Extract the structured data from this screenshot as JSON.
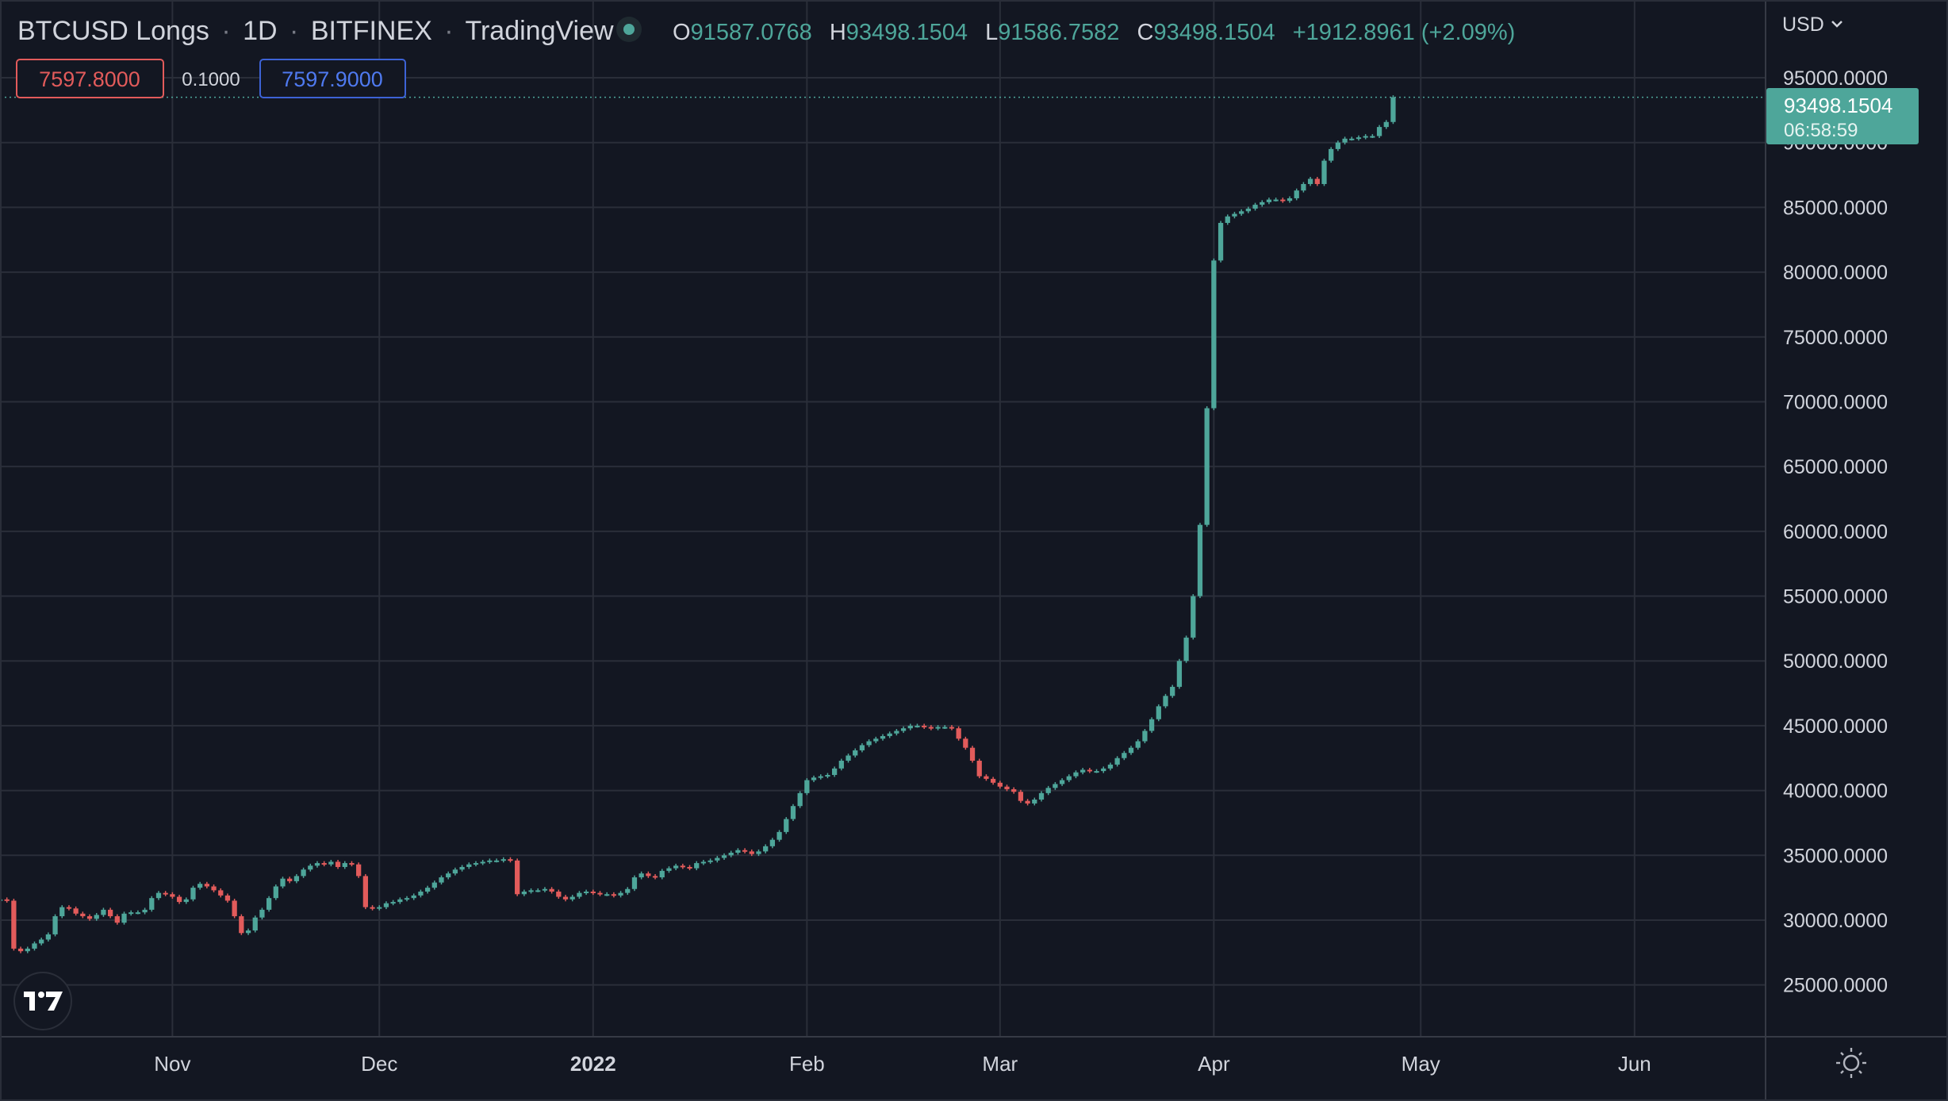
{
  "header": {
    "symbol": "BTCUSD Longs",
    "interval": "1D",
    "exchange": "BITFINEX",
    "provider": "TradingView",
    "sep": "·",
    "ohlc": {
      "o_label": "O",
      "o_value": "91587.0768",
      "h_label": "H",
      "h_value": "93498.1504",
      "l_label": "L",
      "l_value": "91586.7582",
      "c_label": "C",
      "c_value": "93498.1504",
      "change": "+1912.8961 (+2.09%)"
    },
    "sell_price": "7597.8000",
    "spread": "0.1000",
    "buy_price": "7597.9000"
  },
  "currency_menu": "USD",
  "last_price": {
    "value": "93498.1504",
    "countdown": "06:58:59"
  },
  "colors": {
    "background": "#131722",
    "grid": "#2a2e39",
    "up": "#4ea69a",
    "down": "#e25b5b",
    "text": "#d1d4dc",
    "price_label_bg": "#4ea69a"
  },
  "icons": {
    "logo": "tradingview-logo-icon",
    "settings": "settings-sun-icon",
    "status": "market-status-dot-icon",
    "dropdown": "chevron-down-icon"
  },
  "chart_data": {
    "type": "candlestick",
    "series": [
      {
        "name": "BTCUSD Longs"
      }
    ],
    "ylim": [
      21000,
      101000
    ],
    "y_ticks": [
      25000,
      30000,
      35000,
      40000,
      45000,
      50000,
      55000,
      60000,
      65000,
      70000,
      75000,
      80000,
      85000,
      90000,
      95000
    ],
    "y_tick_labels": [
      "25000.0000",
      "30000.0000",
      "35000.0000",
      "40000.0000",
      "45000.0000",
      "50000.0000",
      "55000.0000",
      "60000.0000",
      "65000.0000",
      "70000.0000",
      "75000.0000",
      "80000.0000",
      "85000.0000",
      "90000.0000",
      "95000.0000"
    ],
    "x_range": [
      "2021-10-07",
      "2022-06-20"
    ],
    "x_ticks": [
      {
        "label": "Nov",
        "date": "2021-11-01"
      },
      {
        "label": "Dec",
        "date": "2021-12-01"
      },
      {
        "label": "2022",
        "date": "2022-01-01",
        "bold": true
      },
      {
        "label": "Feb",
        "date": "2022-02-01"
      },
      {
        "label": "Mar",
        "date": "2022-03-01"
      },
      {
        "label": "Apr",
        "date": "2022-04-01"
      },
      {
        "label": "May",
        "date": "2022-05-01"
      },
      {
        "label": "Jun",
        "date": "2022-06-01"
      }
    ],
    "grid": true,
    "dates_start": "2021-10-07",
    "close": [
      31600,
      31500,
      27800,
      27600,
      27800,
      28200,
      28500,
      28900,
      30300,
      31000,
      30900,
      30500,
      30300,
      30100,
      30400,
      30800,
      30300,
      29800,
      30500,
      30600,
      30600,
      30800,
      31700,
      32100,
      32000,
      31800,
      31400,
      31600,
      32500,
      32800,
      32600,
      32300,
      31900,
      31500,
      30300,
      29000,
      29200,
      30200,
      30800,
      31700,
      32600,
      33200,
      33000,
      33400,
      33900,
      34200,
      34400,
      34300,
      34500,
      34100,
      34400,
      34300,
      33400,
      31000,
      30900,
      31000,
      31300,
      31400,
      31600,
      31700,
      31900,
      32200,
      32500,
      32900,
      33300,
      33600,
      33900,
      34100,
      34300,
      34400,
      34500,
      34600,
      34600,
      34700,
      34600,
      32000,
      32200,
      32300,
      32300,
      32400,
      32200,
      31800,
      31600,
      31800,
      32100,
      32200,
      32100,
      32000,
      32000,
      31900,
      32100,
      32400,
      33300,
      33600,
      33400,
      33300,
      33800,
      34000,
      34200,
      34100,
      34000,
      34400,
      34500,
      34600,
      34800,
      35000,
      35200,
      35400,
      35300,
      35100,
      35300,
      35700,
      36200,
      36800,
      37800,
      38800,
      39800,
      40800,
      41000,
      41100,
      41200,
      41700,
      42300,
      42700,
      43100,
      43500,
      43800,
      44000,
      44200,
      44400,
      44600,
      44800,
      45000,
      45000,
      44900,
      44800,
      44900,
      44900,
      44800,
      44000,
      43300,
      42300,
      41100,
      40900,
      40600,
      40300,
      40100,
      39900,
      39200,
      39000,
      39300,
      39800,
      40200,
      40500,
      40800,
      41100,
      41400,
      41600,
      41500,
      41500,
      41700,
      42000,
      42500,
      42900,
      43300,
      43800,
      44600,
      45500,
      46500,
      47300,
      48000,
      50000,
      51800,
      55000,
      60500,
      69500,
      80900,
      83800,
      84300,
      84500,
      84700,
      84900,
      85200,
      85400,
      85600,
      85600,
      85500,
      85700,
      86300,
      86800,
      87200,
      86800,
      88600,
      89500,
      90000,
      90300,
      90300,
      90400,
      90500,
      90500,
      91200,
      91587,
      93498
    ]
  }
}
